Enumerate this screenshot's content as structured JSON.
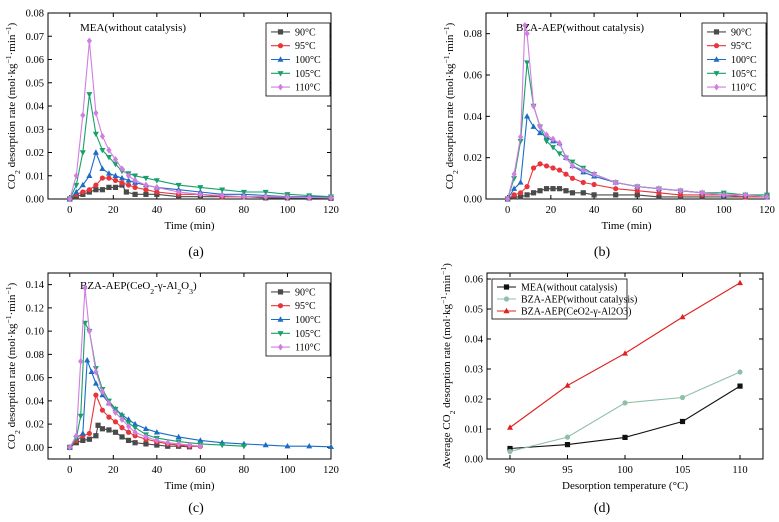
{
  "chart_data": [
    {
      "panel": "(a)",
      "type": "line",
      "title": "MEA(without catalysis)",
      "xlabel": "Time (min)",
      "ylabel": "CO2 desorption rate (mol·kg−1·min−1)",
      "xlim": [
        -10,
        120
      ],
      "ylim": [
        0,
        0.08
      ],
      "xticks": [
        0,
        20,
        40,
        60,
        80,
        100,
        120
      ],
      "yticks": [
        0.0,
        0.01,
        0.02,
        0.03,
        0.04,
        0.05,
        0.06,
        0.07,
        0.08
      ],
      "ytick_labels": [
        "0.00",
        "0.01",
        "0.02",
        "0.03",
        "0.04",
        "0.05",
        "0.06",
        "0.07",
        "0.08"
      ],
      "legend_position": "top-right",
      "series": [
        {
          "name": "90°C",
          "color": "#4a4a4a",
          "marker": "square",
          "x": [
            0,
            3,
            6,
            9,
            12,
            15,
            18,
            21,
            24,
            26,
            30,
            35,
            40,
            50,
            60,
            70,
            80,
            90,
            100,
            110,
            120
          ],
          "y": [
            0,
            0.001,
            0.002,
            0.003,
            0.004,
            0.004,
            0.005,
            0.005,
            0.006,
            0.003,
            0.002,
            0.002,
            0.002,
            0.001,
            0.001,
            0.001,
            0.001,
            0.0005,
            0.0005,
            0.0005,
            0.0003
          ]
        },
        {
          "name": "95°C",
          "color": "#e8343a",
          "marker": "circle",
          "x": [
            0,
            3,
            6,
            9,
            12,
            15,
            18,
            21,
            24,
            27,
            30,
            35,
            40,
            50,
            60,
            70,
            80,
            90,
            100,
            110,
            120
          ],
          "y": [
            0,
            0.002,
            0.003,
            0.004,
            0.006,
            0.009,
            0.009,
            0.008,
            0.007,
            0.006,
            0.005,
            0.004,
            0.003,
            0.002,
            0.002,
            0.001,
            0.001,
            0.001,
            0.0008,
            0.0006,
            0.0005
          ]
        },
        {
          "name": "100°C",
          "color": "#1c6cc6",
          "marker": "triangle-up",
          "x": [
            0,
            3,
            6,
            9,
            12,
            15,
            18,
            21,
            24,
            27,
            30,
            35,
            40,
            50,
            60,
            70,
            80,
            90,
            100,
            110,
            120
          ],
          "y": [
            0,
            0.003,
            0.006,
            0.01,
            0.02,
            0.013,
            0.011,
            0.01,
            0.009,
            0.008,
            0.007,
            0.006,
            0.005,
            0.004,
            0.003,
            0.002,
            0.002,
            0.0015,
            0.001,
            0.001,
            0.0008
          ]
        },
        {
          "name": "105°C",
          "color": "#17a06a",
          "marker": "triangle-down",
          "x": [
            0,
            3,
            6,
            9,
            12,
            15,
            18,
            21,
            24,
            27,
            30,
            35,
            40,
            50,
            60,
            70,
            80,
            90,
            100,
            110,
            120
          ],
          "y": [
            0,
            0.006,
            0.02,
            0.045,
            0.028,
            0.021,
            0.018,
            0.015,
            0.012,
            0.011,
            0.01,
            0.009,
            0.008,
            0.006,
            0.005,
            0.004,
            0.003,
            0.003,
            0.002,
            0.0015,
            0.001
          ]
        },
        {
          "name": "110°C",
          "color": "#d07ee0",
          "marker": "diamond",
          "x": [
            0,
            3,
            6,
            9,
            12,
            15,
            18,
            21,
            24,
            27,
            30,
            35,
            40,
            50,
            60,
            70,
            80,
            90,
            100,
            110,
            120
          ],
          "y": [
            0,
            0.01,
            0.036,
            0.068,
            0.037,
            0.027,
            0.021,
            0.017,
            0.013,
            0.01,
            0.008,
            0.006,
            0.005,
            0.003,
            0.002,
            0.0015,
            0.001,
            0.001,
            0.0008,
            0.0006,
            0.0005
          ]
        }
      ]
    },
    {
      "panel": "(b)",
      "type": "line",
      "title": "BZA-AEP(without catalysis)",
      "xlabel": "Time (min)",
      "ylabel": "CO2 desorption rate (mol·kg−1·min−1)",
      "xlim": [
        -10,
        120
      ],
      "ylim": [
        0,
        0.09
      ],
      "xticks": [
        0,
        20,
        40,
        60,
        80,
        100,
        120
      ],
      "yticks": [
        0.0,
        0.02,
        0.04,
        0.06,
        0.08
      ],
      "ytick_labels": [
        "0.00",
        "0.02",
        "0.04",
        "0.06",
        "0.08"
      ],
      "legend_position": "top-right",
      "series": [
        {
          "name": "90°C",
          "color": "#4a4a4a",
          "marker": "square",
          "x": [
            0,
            3,
            6,
            9,
            12,
            15,
            18,
            21,
            24,
            27,
            30,
            35,
            40,
            50,
            60,
            70,
            80,
            90,
            100,
            110,
            120
          ],
          "y": [
            0,
            0.001,
            0.001,
            0.002,
            0.003,
            0.004,
            0.005,
            0.005,
            0.005,
            0.004,
            0.003,
            0.003,
            0.002,
            0.002,
            0.002,
            0.001,
            0.001,
            0.001,
            0.001,
            0.001,
            0.001
          ]
        },
        {
          "name": "95°C",
          "color": "#e8343a",
          "marker": "circle",
          "x": [
            0,
            3,
            6,
            9,
            12,
            15,
            18,
            21,
            24,
            27,
            30,
            35,
            40,
            50,
            60,
            70,
            80,
            90,
            100,
            110,
            120
          ],
          "y": [
            0,
            0.002,
            0.003,
            0.006,
            0.015,
            0.017,
            0.016,
            0.015,
            0.014,
            0.012,
            0.01,
            0.008,
            0.007,
            0.005,
            0.004,
            0.003,
            0.002,
            0.002,
            0.002,
            0.001,
            0.001
          ]
        },
        {
          "name": "100°C",
          "color": "#1c6cc6",
          "marker": "triangle-up",
          "x": [
            0,
            3,
            6,
            9,
            12,
            15,
            18,
            21,
            24,
            27,
            30,
            35,
            40,
            50,
            60,
            70,
            80,
            90,
            100,
            110,
            120
          ],
          "y": [
            0,
            0.005,
            0.008,
            0.04,
            0.035,
            0.032,
            0.03,
            0.028,
            0.027,
            0.02,
            0.016,
            0.013,
            0.011,
            0.008,
            0.006,
            0.005,
            0.004,
            0.003,
            0.002,
            0.002,
            0.001
          ]
        },
        {
          "name": "105°C",
          "color": "#17a06a",
          "marker": "triangle-down",
          "x": [
            0,
            3,
            6,
            9,
            12,
            15,
            18,
            21,
            24,
            27,
            30,
            35,
            40,
            50,
            60,
            70,
            80,
            90,
            100,
            110,
            120
          ],
          "y": [
            0,
            0.01,
            0.028,
            0.066,
            0.045,
            0.035,
            0.028,
            0.025,
            0.022,
            0.02,
            0.018,
            0.015,
            0.012,
            0.008,
            0.006,
            0.005,
            0.004,
            0.003,
            0.003,
            0.002,
            0.002
          ]
        },
        {
          "name": "110°C",
          "color": "#d07ee0",
          "marker": "diamond",
          "x": [
            0,
            3,
            6,
            8,
            9,
            12,
            15,
            18,
            21,
            24,
            27,
            30,
            35,
            40,
            50,
            60,
            70,
            80,
            90,
            100,
            110,
            120
          ],
          "y": [
            0,
            0.012,
            0.03,
            0.084,
            0.08,
            0.045,
            0.035,
            0.031,
            0.029,
            0.027,
            0.02,
            0.016,
            0.014,
            0.012,
            0.008,
            0.006,
            0.005,
            0.004,
            0.003,
            0.002,
            0.002,
            0.001
          ]
        }
      ]
    },
    {
      "panel": "(c)",
      "type": "line",
      "title": "BZA-AEP(CeO2-γ-Al2O3)",
      "xlabel": "Time (min)",
      "ylabel": "CO2 desorption rate (mol·kg−1·min−1)",
      "xlim": [
        -10,
        120
      ],
      "ylim": [
        -0.01,
        0.15
      ],
      "xticks": [
        0,
        20,
        40,
        60,
        80,
        100,
        120
      ],
      "yticks": [
        0.0,
        0.02,
        0.04,
        0.06,
        0.08,
        0.1,
        0.12,
        0.14
      ],
      "ytick_labels": [
        "0.00",
        "0.02",
        "0.04",
        "0.06",
        "0.08",
        "0.10",
        "0.12",
        "0.14"
      ],
      "legend_position": "top-right",
      "series": [
        {
          "name": "90°C",
          "color": "#4a4a4a",
          "marker": "square",
          "x": [
            0,
            3,
            6,
            9,
            12,
            13,
            15,
            18,
            21,
            24,
            27,
            30,
            35,
            40,
            45,
            50,
            55
          ],
          "y": [
            0,
            0.004,
            0.006,
            0.007,
            0.01,
            0.019,
            0.016,
            0.015,
            0.013,
            0.009,
            0.006,
            0.004,
            0.003,
            0.002,
            0.001,
            0.001,
            0.0005
          ]
        },
        {
          "name": "95°C",
          "color": "#e8343a",
          "marker": "circle",
          "x": [
            0,
            3,
            6,
            9,
            12,
            15,
            18,
            21,
            24,
            27,
            30,
            35,
            40,
            45,
            50,
            55,
            60
          ],
          "y": [
            0,
            0.006,
            0.01,
            0.012,
            0.045,
            0.032,
            0.026,
            0.022,
            0.017,
            0.013,
            0.01,
            0.007,
            0.005,
            0.003,
            0.002,
            0.001,
            0.0008
          ]
        },
        {
          "name": "100°C",
          "color": "#1c6cc6",
          "marker": "triangle-up",
          "x": [
            0,
            3,
            6,
            8,
            10,
            12,
            15,
            18,
            21,
            24,
            27,
            30,
            35,
            40,
            50,
            60,
            70,
            80,
            90,
            100,
            110,
            120
          ],
          "y": [
            0,
            0.008,
            0.012,
            0.075,
            0.065,
            0.055,
            0.045,
            0.038,
            0.033,
            0.028,
            0.024,
            0.02,
            0.016,
            0.013,
            0.009,
            0.006,
            0.004,
            0.003,
            0.002,
            0.001,
            0.001,
            0.0005
          ]
        },
        {
          "name": "105°C",
          "color": "#17a06a",
          "marker": "triangle-down",
          "x": [
            0,
            3,
            5,
            7,
            9,
            12,
            15,
            18,
            21,
            24,
            27,
            30,
            35,
            40,
            50,
            60,
            70,
            80
          ],
          "y": [
            0,
            0.008,
            0.027,
            0.107,
            0.1,
            0.068,
            0.05,
            0.04,
            0.033,
            0.027,
            0.021,
            0.017,
            0.011,
            0.008,
            0.005,
            0.003,
            0.002,
            0.001
          ]
        },
        {
          "name": "110°C",
          "color": "#d07ee0",
          "marker": "diamond",
          "x": [
            0,
            3,
            5,
            7,
            9,
            12,
            15,
            18,
            21,
            24,
            27,
            30,
            35,
            40,
            45,
            50,
            55,
            60
          ],
          "y": [
            0,
            0.01,
            0.074,
            0.137,
            0.1,
            0.065,
            0.048,
            0.038,
            0.03,
            0.024,
            0.018,
            0.013,
            0.009,
            0.006,
            0.004,
            0.003,
            0.002,
            0.001
          ]
        }
      ]
    },
    {
      "panel": "(d)",
      "type": "line",
      "xlabel": "Desorption temperature (°C)",
      "ylabel": "Average CO2 desorption rate (mol·kg−1·min−1)",
      "xlim": [
        88,
        112
      ],
      "ylim": [
        0,
        0.062
      ],
      "xticks": [
        90,
        95,
        100,
        105,
        110
      ],
      "yticks": [
        0.0,
        0.01,
        0.02,
        0.03,
        0.04,
        0.05,
        0.06
      ],
      "ytick_labels": [
        "0.00",
        "0.01",
        "0.02",
        "0.03",
        "0.04",
        "0.05",
        "0.06"
      ],
      "legend_position": "top-left",
      "series": [
        {
          "name": "MEA(without catalysis)",
          "color": "#111111",
          "marker": "square",
          "x": [
            90,
            95,
            100,
            105,
            110
          ],
          "y": [
            0.0035,
            0.0048,
            0.0072,
            0.0125,
            0.0243
          ]
        },
        {
          "name": "BZA-AEP(without catalysis)",
          "color": "#8fbfa8",
          "marker": "circle",
          "x": [
            90,
            95,
            100,
            105,
            110
          ],
          "y": [
            0.0025,
            0.0073,
            0.0187,
            0.0205,
            0.029
          ]
        },
        {
          "name": "BZA-AEP(CeO2-γ-Al2O3)",
          "color": "#e02020",
          "marker": "triangle-up",
          "x": [
            90,
            95,
            100,
            105,
            110
          ],
          "y": [
            0.0105,
            0.0245,
            0.0352,
            0.0473,
            0.0587
          ]
        }
      ]
    }
  ],
  "panel_labels": [
    "(a)",
    "(b)",
    "(c)",
    "(d)"
  ]
}
